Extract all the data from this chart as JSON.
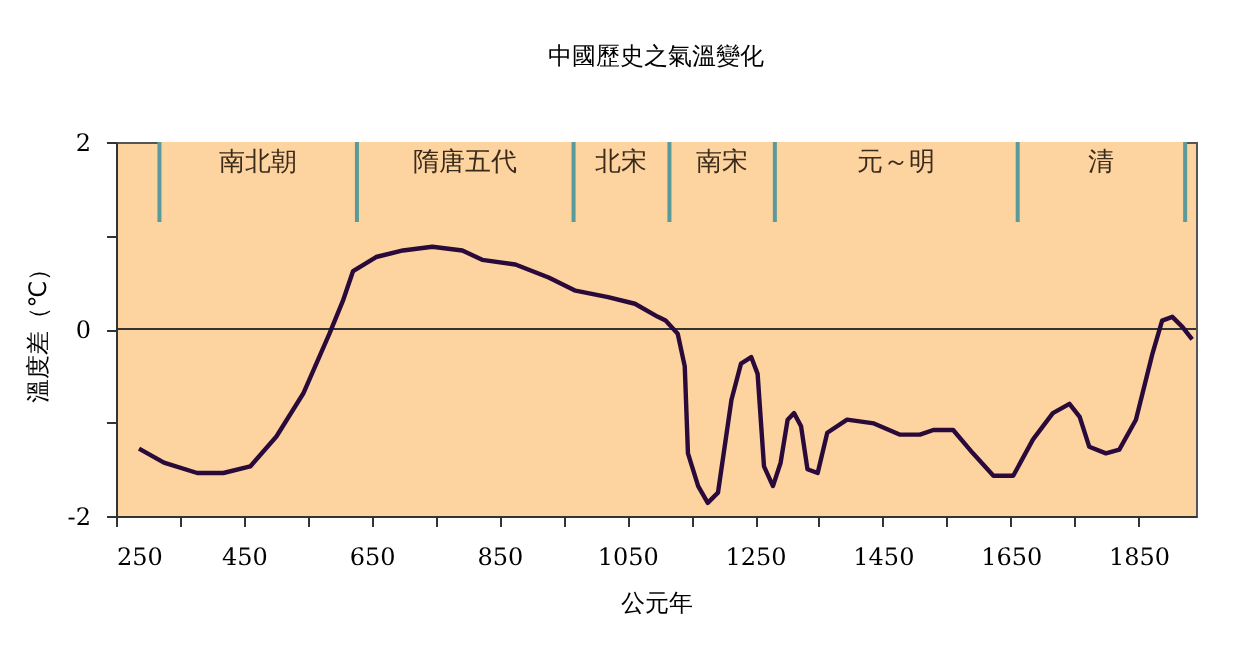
{
  "chart_data": {
    "type": "line",
    "title": "中國歷史之氣溫變化",
    "xlabel": "公元年",
    "ylabel": "溫度差（℃）",
    "xlim": [
      250,
      1940
    ],
    "ylim": [
      -2,
      2
    ],
    "xticks": [
      250,
      {
        "value": 350,
        "label": null
      },
      450,
      {
        "value": 550,
        "label": null
      },
      650,
      {
        "value": 750,
        "label": null
      },
      850,
      {
        "value": 950,
        "label": null
      },
      1050,
      {
        "value": 1150,
        "label": null
      },
      1250,
      {
        "value": 1350,
        "label": null
      },
      1450,
      {
        "value": 1550,
        "label": null
      },
      1650,
      {
        "value": 1750,
        "label": null
      },
      1850
    ],
    "yticks": [
      -2,
      {
        "value": -1,
        "label": null
      },
      0,
      {
        "value": 1,
        "label": null
      },
      2
    ],
    "grid": false,
    "marker": "none",
    "line_style": "solid",
    "bands": [
      {
        "axis": "x",
        "from": 318,
        "to": 627,
        "label": "南北朝",
        "color": "#fdd3a0"
      },
      {
        "axis": "x",
        "from": 627,
        "to": 966,
        "label": "隋唐五代",
        "color": "#fdd3a0"
      },
      {
        "axis": "x",
        "from": 966,
        "to": 1116,
        "label": "北宋",
        "color": "#fdd3a0"
      },
      {
        "axis": "x",
        "from": 1116,
        "to": 1281,
        "label": "南宋",
        "color": "#fdd3a0"
      },
      {
        "axis": "x",
        "from": 1281,
        "to": 1661,
        "label": "元～明",
        "color": "#fdd3a0"
      },
      {
        "axis": "x",
        "from": 1661,
        "to": 1923,
        "label": "清",
        "color": "#fdd3a0"
      }
    ],
    "ref_lines": [
      {
        "axis": "y",
        "value": 0,
        "color": "#333333"
      },
      {
        "axis": "x",
        "value": 318,
        "color": "#5a9a9a"
      },
      {
        "axis": "x",
        "value": 627,
        "color": "#5a9a9a"
      },
      {
        "axis": "x",
        "value": 966,
        "color": "#5a9a9a"
      },
      {
        "axis": "x",
        "value": 1116,
        "color": "#5a9a9a"
      },
      {
        "axis": "x",
        "value": 1281,
        "color": "#5a9a9a"
      },
      {
        "axis": "x",
        "value": 1661,
        "color": "#5a9a9a"
      },
      {
        "axis": "x",
        "value": 1923,
        "color": "#5a9a9a"
      }
    ],
    "series": [
      {
        "color": "#2a0a3a",
        "x": [
          286,
          325,
          377,
          418,
          460,
          501,
          543,
          584,
          605,
          621,
          657,
          699,
          745,
          792,
          823,
          875,
          927,
          969,
          1020,
          1062,
          1098,
          1110,
          1129,
          1140,
          1145,
          1161,
          1176,
          1192,
          1213,
          1228,
          1244,
          1254,
          1264,
          1278,
          1290,
          1301,
          1311,
          1322,
          1332,
          1348,
          1363,
          1394,
          1436,
          1477,
          1508,
          1529,
          1560,
          1591,
          1623,
          1654,
          1685,
          1716,
          1742,
          1758,
          1773,
          1799,
          1820,
          1846,
          1872,
          1887,
          1903,
          1919,
          1934
        ],
        "values": [
          -1.28,
          -1.43,
          -1.54,
          -1.54,
          -1.47,
          -1.15,
          -0.69,
          -0.05,
          0.3,
          0.62,
          0.77,
          0.84,
          0.88,
          0.84,
          0.74,
          0.69,
          0.55,
          0.41,
          0.34,
          0.27,
          0.13,
          0.09,
          -0.05,
          -0.4,
          -1.33,
          -1.68,
          -1.86,
          -1.75,
          -0.76,
          -0.37,
          -0.3,
          -0.48,
          -1.47,
          -1.68,
          -1.43,
          -0.97,
          -0.9,
          -1.04,
          -1.5,
          -1.54,
          -1.11,
          -0.97,
          -1.01,
          -1.13,
          -1.13,
          -1.08,
          -1.08,
          -1.33,
          -1.57,
          -1.57,
          -1.18,
          -0.9,
          -0.8,
          -0.94,
          -1.26,
          -1.33,
          -1.29,
          -0.97,
          -0.26,
          0.09,
          0.13,
          0.02,
          -0.11
        ]
      }
    ]
  }
}
